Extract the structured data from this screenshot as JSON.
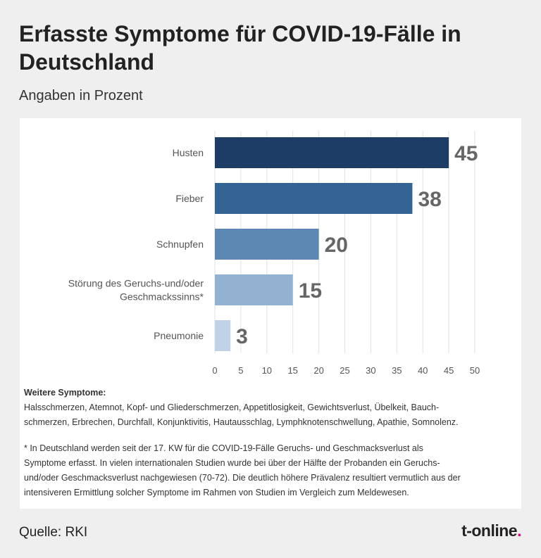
{
  "header": {
    "title": "Erfasste Symptome für COVID-19-Fälle in Deutschland",
    "subtitle": "Angaben in Prozent"
  },
  "chart_data": {
    "type": "bar",
    "orientation": "horizontal",
    "categories": [
      "Husten",
      "Fieber",
      "Schnupfen",
      "Störung des Geruchs-und/oder Geschmackssinns*",
      "Pneumonie"
    ],
    "category_lines": [
      [
        "Husten"
      ],
      [
        "Fieber"
      ],
      [
        "Schnupfen"
      ],
      [
        "Störung des Geruchs-und/oder",
        "Geschmackssinns*"
      ],
      [
        "Pneumonie"
      ]
    ],
    "values": [
      45,
      38,
      20,
      15,
      3
    ],
    "bar_colors": [
      "#1d3d66",
      "#336494",
      "#5d88b3",
      "#93b2d2",
      "#bfd2e6"
    ],
    "xlim": [
      0,
      50
    ],
    "xticks": [
      0,
      5,
      10,
      15,
      20,
      25,
      30,
      35,
      40,
      45,
      50
    ],
    "grid": true,
    "legend": "none"
  },
  "notes": {
    "heading": "Weitere Symptome:",
    "symptoms_line1": "Halsschmerzen, Atemnot, Kopf- und Gliederschmerzen, Appetitlosigkeit, Gewichtsverlust, Übelkeit, Bauch-",
    "symptoms_line2": "schmerzen, Erbrechen, Durchfall, Konjunktivitis, Hautausschlag, Lymphknotenschwellung, Apathie, Somnolenz.",
    "footnote_line1": "* In Deutschland werden seit der 17. KW für die COVID-19-Fälle Geruchs- und Geschmacksverlust als",
    "footnote_line2": "Symptome erfasst. In vielen internationalen Studien wurde bei über der Hälfte der Probanden ein Geruchs-",
    "footnote_line3": "und/oder Geschmacksverlust nachgewiesen (70-72). Die deutlich höhere Prävalenz resultiert vermutlich aus der",
    "footnote_line4": "intensiveren Ermittlung solcher Symptome im Rahmen von Studien im Vergleich zum Meldewesen."
  },
  "footer": {
    "source": "Quelle: RKI",
    "brand": "t-online",
    "brand_dot": ".",
    "brand_dot_color": "#e4007c"
  }
}
